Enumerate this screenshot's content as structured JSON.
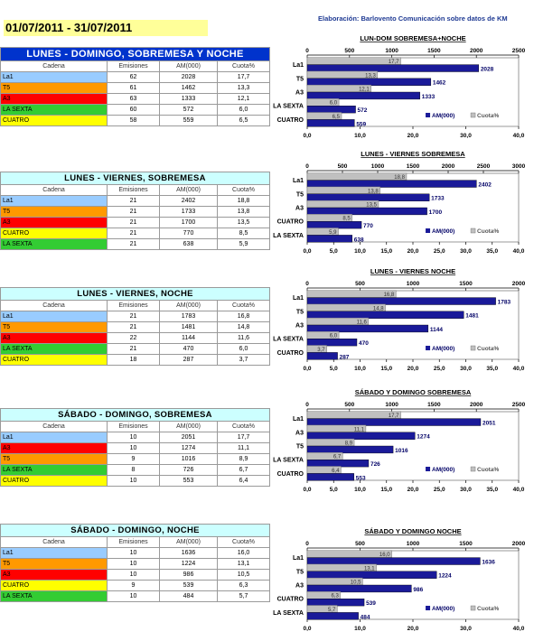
{
  "header": {
    "date_range": "01/07/2011 - 31/07/2011",
    "credit": "Elaboración: Barlovento Comunicación sobre datos de KM"
  },
  "colors": {
    "La1": "#99ccff",
    "T5": "#ff9900",
    "A3": "#ff0000",
    "LA SEXTA": "#33cc33",
    "CUATRO": "#ffff00",
    "title_blue": "#0033cc",
    "title_light": "#ccffff",
    "am_bar": "#1a1a99",
    "cuota_bar": "#c0c0c0"
  },
  "sections": [
    {
      "table": {
        "title": "LUNES - DOMINGO, SOBREMESA Y NOCHE",
        "style": "blue",
        "headers": [
          "Cadena",
          "Emisiones",
          "AM(000)",
          "Cuota%"
        ],
        "rows": [
          {
            "cadena": "La1",
            "emisiones": "62",
            "am": "2028",
            "cuota": "17,7"
          },
          {
            "cadena": "T5",
            "emisiones": "61",
            "am": "1462",
            "cuota": "13,3"
          },
          {
            "cadena": "A3",
            "emisiones": "63",
            "am": "1333",
            "cuota": "12,1"
          },
          {
            "cadena": "LA SEXTA",
            "emisiones": "60",
            "am": "572",
            "cuota": "6,0"
          },
          {
            "cadena": "CUATRO",
            "emisiones": "58",
            "am": "559",
            "cuota": "6,5"
          }
        ]
      },
      "chart": {
        "title": "LUN-DOM SOBREMESA+NOCHE",
        "am_ticks": [
          "0",
          "500",
          "1000",
          "1500",
          "2000",
          "2500"
        ],
        "cuota_ticks": [
          "0,0",
          "10,0",
          "20,0",
          "30,0",
          "40,0"
        ],
        "legend": [
          "AM(000)",
          "Cuota%"
        ]
      }
    },
    {
      "table": {
        "title": "LUNES - VIERNES, SOBREMESA",
        "style": "light",
        "headers": [
          "Cadena",
          "Emisiones",
          "AM(000)",
          "Cuota%"
        ],
        "rows": [
          {
            "cadena": "La1",
            "emisiones": "21",
            "am": "2402",
            "cuota": "18,8"
          },
          {
            "cadena": "T5",
            "emisiones": "21",
            "am": "1733",
            "cuota": "13,8"
          },
          {
            "cadena": "A3",
            "emisiones": "21",
            "am": "1700",
            "cuota": "13,5"
          },
          {
            "cadena": "CUATRO",
            "emisiones": "21",
            "am": "770",
            "cuota": "8,5"
          },
          {
            "cadena": "LA SEXTA",
            "emisiones": "21",
            "am": "638",
            "cuota": "5,9"
          }
        ]
      },
      "chart": {
        "title": "LUNES - VIERNES SOBREMESA",
        "am_ticks": [
          "0",
          "500",
          "1000",
          "1500",
          "2000",
          "2500",
          "3000"
        ],
        "cuota_ticks": [
          "0,0",
          "5,0",
          "10,0",
          "15,0",
          "20,0",
          "25,0",
          "30,0",
          "35,0",
          "40,0"
        ],
        "legend": [
          "AM(000)",
          "Cuota%"
        ]
      }
    },
    {
      "table": {
        "title": "LUNES - VIERNES, NOCHE",
        "style": "light",
        "headers": [
          "Cadena",
          "Emisiones",
          "AM(000)",
          "Cuota%"
        ],
        "rows": [
          {
            "cadena": "La1",
            "emisiones": "21",
            "am": "1783",
            "cuota": "16,8"
          },
          {
            "cadena": "T5",
            "emisiones": "21",
            "am": "1481",
            "cuota": "14,8"
          },
          {
            "cadena": "A3",
            "emisiones": "22",
            "am": "1144",
            "cuota": "11,6"
          },
          {
            "cadena": "LA SEXTA",
            "emisiones": "21",
            "am": "470",
            "cuota": "6,0"
          },
          {
            "cadena": "CUATRO",
            "emisiones": "18",
            "am": "287",
            "cuota": "3,7"
          }
        ]
      },
      "chart": {
        "title": "LUNES - VIERNES  NOCHE",
        "am_ticks": [
          "0",
          "500",
          "1000",
          "1500",
          "2000"
        ],
        "cuota_ticks": [
          "0,0",
          "5,0",
          "10,0",
          "15,0",
          "20,0",
          "25,0",
          "30,0",
          "35,0",
          "40,0"
        ],
        "legend": [
          "AM(000)",
          "Cuota%"
        ]
      }
    },
    {
      "table": {
        "title": "SÁBADO - DOMINGO, SOBREMESA",
        "style": "light",
        "headers": [
          "Cadena",
          "Emisiones",
          "AM(000)",
          "Cuota%"
        ],
        "rows": [
          {
            "cadena": "La1",
            "emisiones": "10",
            "am": "2051",
            "cuota": "17,7"
          },
          {
            "cadena": "A3",
            "emisiones": "10",
            "am": "1274",
            "cuota": "11,1"
          },
          {
            "cadena": "T5",
            "emisiones": "9",
            "am": "1016",
            "cuota": "8,9"
          },
          {
            "cadena": "LA SEXTA",
            "emisiones": "8",
            "am": "726",
            "cuota": "6,7"
          },
          {
            "cadena": "CUATRO",
            "emisiones": "10",
            "am": "553",
            "cuota": "6,4"
          }
        ]
      },
      "chart": {
        "title": "SÁBADO Y DOMINGO SOBREMESA",
        "am_ticks": [
          "0",
          "500",
          "1000",
          "1500",
          "2000",
          "2500"
        ],
        "cuota_ticks": [
          "0,0",
          "5,0",
          "10,0",
          "15,0",
          "20,0",
          "25,0",
          "30,0",
          "35,0",
          "40,0"
        ],
        "legend": [
          "AM(000)",
          "Cuota%"
        ]
      }
    },
    {
      "table": {
        "title": "SÁBADO - DOMINGO, NOCHE",
        "style": "light",
        "headers": [
          "Cadena",
          "Emisiones",
          "AM(000)",
          "Cuota%"
        ],
        "rows": [
          {
            "cadena": "La1",
            "emisiones": "10",
            "am": "1636",
            "cuota": "16,0"
          },
          {
            "cadena": "T5",
            "emisiones": "10",
            "am": "1224",
            "cuota": "13,1"
          },
          {
            "cadena": "A3",
            "emisiones": "10",
            "am": "986",
            "cuota": "10,5"
          },
          {
            "cadena": "CUATRO",
            "emisiones": "9",
            "am": "539",
            "cuota": "6,3"
          },
          {
            "cadena": "LA SEXTA",
            "emisiones": "10",
            "am": "484",
            "cuota": "5,7"
          }
        ]
      },
      "chart": {
        "title": "SÁBADO Y DOMINGO  NOCHE",
        "am_ticks": [
          "0",
          "500",
          "1000",
          "1500",
          "2000"
        ],
        "cuota_ticks": [
          "0,0",
          "10,0",
          "20,0",
          "30,0",
          "40,0"
        ],
        "legend": [
          "AM(000)",
          "Cuota%"
        ]
      }
    }
  ],
  "chart_data": [
    {
      "type": "bar",
      "orientation": "horizontal",
      "title": "LUN-DOM SOBREMESA+NOCHE",
      "categories": [
        "La1",
        "T5",
        "A3",
        "LA SEXTA",
        "CUATRO"
      ],
      "series": [
        {
          "name": "AM(000)",
          "values": [
            2028,
            1462,
            1333,
            572,
            559
          ],
          "axis": "top",
          "lim": [
            0,
            2500
          ]
        },
        {
          "name": "Cuota%",
          "values": [
            17.7,
            13.3,
            12.1,
            6.0,
            6.5
          ],
          "axis": "bottom",
          "lim": [
            0,
            40
          ]
        }
      ],
      "legend": "inside-bottom-right"
    },
    {
      "type": "bar",
      "orientation": "horizontal",
      "title": "LUNES - VIERNES SOBREMESA",
      "categories": [
        "La1",
        "T5",
        "A3",
        "CUATRO",
        "LA SEXTA"
      ],
      "series": [
        {
          "name": "AM(000)",
          "values": [
            2402,
            1733,
            1700,
            770,
            638
          ],
          "axis": "top",
          "lim": [
            0,
            3000
          ]
        },
        {
          "name": "Cuota%",
          "values": [
            18.8,
            13.8,
            13.5,
            8.5,
            5.9
          ],
          "axis": "bottom",
          "lim": [
            0,
            40
          ]
        }
      ],
      "legend": "inside-bottom-right"
    },
    {
      "type": "bar",
      "orientation": "horizontal",
      "title": "LUNES - VIERNES  NOCHE",
      "categories": [
        "La1",
        "T5",
        "A3",
        "LA SEXTA",
        "CUATRO"
      ],
      "series": [
        {
          "name": "AM(000)",
          "values": [
            1783,
            1481,
            1144,
            470,
            287
          ],
          "axis": "top",
          "lim": [
            0,
            2000
          ]
        },
        {
          "name": "Cuota%",
          "values": [
            16.8,
            14.8,
            11.6,
            6.0,
            3.7
          ],
          "axis": "bottom",
          "lim": [
            0,
            40
          ]
        }
      ],
      "legend": "inside-bottom-right"
    },
    {
      "type": "bar",
      "orientation": "horizontal",
      "title": "SÁBADO Y DOMINGO SOBREMESA",
      "categories": [
        "La1",
        "A3",
        "T5",
        "LA SEXTA",
        "CUATRO"
      ],
      "series": [
        {
          "name": "AM(000)",
          "values": [
            2051,
            1274,
            1016,
            726,
            553
          ],
          "axis": "top",
          "lim": [
            0,
            2500
          ]
        },
        {
          "name": "Cuota%",
          "values": [
            17.7,
            11.1,
            8.9,
            6.7,
            6.4
          ],
          "axis": "bottom",
          "lim": [
            0,
            40
          ]
        }
      ],
      "legend": "inside-bottom-right"
    },
    {
      "type": "bar",
      "orientation": "horizontal",
      "title": "SÁBADO Y DOMINGO  NOCHE",
      "categories": [
        "La1",
        "T5",
        "A3",
        "CUATRO",
        "LA SEXTA"
      ],
      "series": [
        {
          "name": "AM(000)",
          "values": [
            1636,
            1224,
            986,
            539,
            484
          ],
          "axis": "top",
          "lim": [
            0,
            2000
          ]
        },
        {
          "name": "Cuota%",
          "values": [
            16.0,
            13.1,
            10.5,
            6.3,
            5.7
          ],
          "axis": "bottom",
          "lim": [
            0,
            40
          ]
        }
      ],
      "legend": "inside-bottom-right"
    }
  ]
}
